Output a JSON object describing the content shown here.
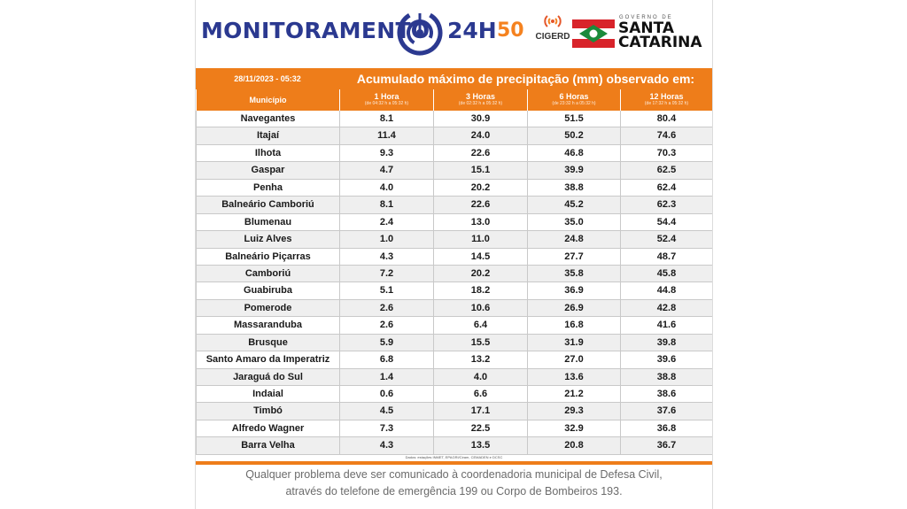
{
  "header": {
    "title": "MONITORAMENTO",
    "title_suffix": "24H",
    "badge_50": "50",
    "cigerd": "CIGERD",
    "gov_small": "GOVERNO DE",
    "gov_line1": "SANTA",
    "gov_line2": "CATARINA"
  },
  "table": {
    "date": "28/11/2023 - 05:32",
    "title": "Acumulado máximo de precipitação (mm) observado em:",
    "columns": [
      {
        "label": "Município",
        "sub": ""
      },
      {
        "label": "1 Hora",
        "sub": "(de 04:32 h a 05:32 h)"
      },
      {
        "label": "3 Horas",
        "sub": "(de 02:32 h a 05:32 h)"
      },
      {
        "label": "6 Horas",
        "sub": "(de 23:32 h a 05:32 h)"
      },
      {
        "label": "12 Horas",
        "sub": "(de 17:32 h a 05:32 h)"
      }
    ],
    "rows": [
      [
        "Navegantes",
        "8.1",
        "30.9",
        "51.5",
        "80.4"
      ],
      [
        "Itajaí",
        "11.4",
        "24.0",
        "50.2",
        "74.6"
      ],
      [
        "Ilhota",
        "9.3",
        "22.6",
        "46.8",
        "70.3"
      ],
      [
        "Gaspar",
        "4.7",
        "15.1",
        "39.9",
        "62.5"
      ],
      [
        "Penha",
        "4.0",
        "20.2",
        "38.8",
        "62.4"
      ],
      [
        "Balneário Camboriú",
        "8.1",
        "22.6",
        "45.2",
        "62.3"
      ],
      [
        "Blumenau",
        "2.4",
        "13.0",
        "35.0",
        "54.4"
      ],
      [
        "Luiz Alves",
        "1.0",
        "11.0",
        "24.8",
        "52.4"
      ],
      [
        "Balneário Piçarras",
        "4.3",
        "14.5",
        "27.7",
        "48.7"
      ],
      [
        "Camboriú",
        "7.2",
        "20.2",
        "35.8",
        "45.8"
      ],
      [
        "Guabiruba",
        "5.1",
        "18.2",
        "36.9",
        "44.8"
      ],
      [
        "Pomerode",
        "2.6",
        "10.6",
        "26.9",
        "42.8"
      ],
      [
        "Massaranduba",
        "2.6",
        "6.4",
        "16.8",
        "41.6"
      ],
      [
        "Brusque",
        "5.9",
        "15.5",
        "31.9",
        "39.8"
      ],
      [
        "Santo Amaro da Imperatriz",
        "6.8",
        "13.2",
        "27.0",
        "39.6"
      ],
      [
        "Jaraguá do Sul",
        "1.4",
        "4.0",
        "13.6",
        "38.8"
      ],
      [
        "Indaial",
        "0.6",
        "6.6",
        "21.2",
        "38.6"
      ],
      [
        "Timbó",
        "4.5",
        "17.1",
        "29.3",
        "37.6"
      ],
      [
        "Alfredo Wagner",
        "7.3",
        "22.5",
        "32.9",
        "36.8"
      ],
      [
        "Barra Velha",
        "4.3",
        "13.5",
        "20.8",
        "36.7"
      ]
    ],
    "source": "Dados: estações INMET, EPAGRI/Ciram, CEMADEN e DCSC"
  },
  "footer": {
    "line1": "Qualquer problema deve ser comunicado à coordenadoria municipal de Defesa Civil,",
    "line2": "através do telefone de emergência 199 ou Corpo de Bombeiros 193."
  },
  "colors": {
    "accent": "#ee7d1a",
    "brand_blue": "#2b3990",
    "row_alt": "#efefef"
  },
  "icons": [
    "monitoring-ring-icon",
    "cigerd-waves-icon",
    "santa-catarina-flag-icon"
  ]
}
